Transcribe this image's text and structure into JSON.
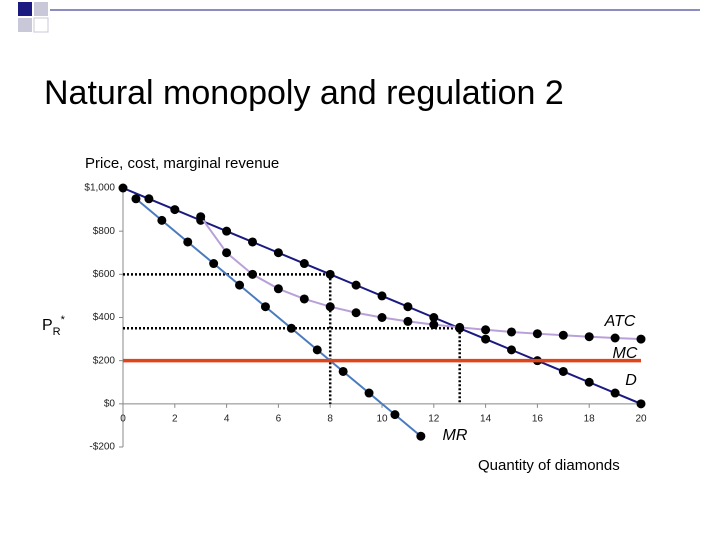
{
  "title": "Natural monopoly and regulation 2",
  "chart_data": {
    "type": "line",
    "ylabel": "Price, cost, marginal revenue",
    "xlabel": "Quantity of diamonds",
    "xlim": [
      0,
      20
    ],
    "xticks": [
      0,
      2,
      4,
      6,
      8,
      10,
      12,
      14,
      16,
      18,
      20
    ],
    "ylim": [
      -200,
      1000
    ],
    "yticks": [
      {
        "value": -200,
        "label": "-$200"
      },
      {
        "value": 0,
        "label": "$0"
      },
      {
        "value": 200,
        "label": "$200"
      },
      {
        "value": 400,
        "label": "$400"
      },
      {
        "value": 600,
        "label": "$600"
      },
      {
        "value": 800,
        "label": "$800"
      },
      {
        "value": 1000,
        "label": "$1,000"
      }
    ],
    "series": [
      {
        "name": "D",
        "color": "#1a1a80",
        "markers": true,
        "x": [
          0,
          1,
          2,
          3,
          4,
          5,
          6,
          7,
          8,
          9,
          10,
          11,
          12,
          13,
          14,
          15,
          16,
          17,
          18,
          19,
          20
        ],
        "values": [
          1000,
          950,
          900,
          850,
          800,
          750,
          700,
          650,
          600,
          550,
          500,
          450,
          400,
          350,
          300,
          250,
          200,
          150,
          100,
          50,
          0
        ]
      },
      {
        "name": "MR",
        "color": "#4a7bbf",
        "markers": true,
        "x": [
          0.5,
          1.5,
          2.5,
          3.5,
          4.5,
          5.5,
          6.5,
          7.5,
          8.5,
          9.5,
          10.5,
          11.5
        ],
        "values": [
          950,
          850,
          750,
          650,
          550,
          450,
          350,
          250,
          150,
          50,
          -50,
          -150
        ]
      },
      {
        "name": "ATC",
        "color": "#b9a0d8",
        "markers": true,
        "x": [
          3,
          4,
          5,
          6,
          7,
          8,
          9,
          10,
          11,
          12,
          13,
          14,
          15,
          16,
          17,
          18,
          19,
          20
        ],
        "values": [
          867,
          700,
          600,
          533,
          486,
          450,
          422,
          400,
          382,
          367,
          354,
          343,
          333,
          325,
          318,
          311,
          305,
          300
        ]
      },
      {
        "name": "MC",
        "color": "#e0441a",
        "markers": false,
        "x": [
          0,
          20
        ],
        "values": [
          200,
          200
        ]
      }
    ],
    "reference_lines": [
      {
        "x": 8,
        "y": 600
      },
      {
        "x": 13,
        "y": 350
      }
    ],
    "price_label": {
      "text": "P",
      "sub": "R",
      "sup": "*"
    }
  }
}
